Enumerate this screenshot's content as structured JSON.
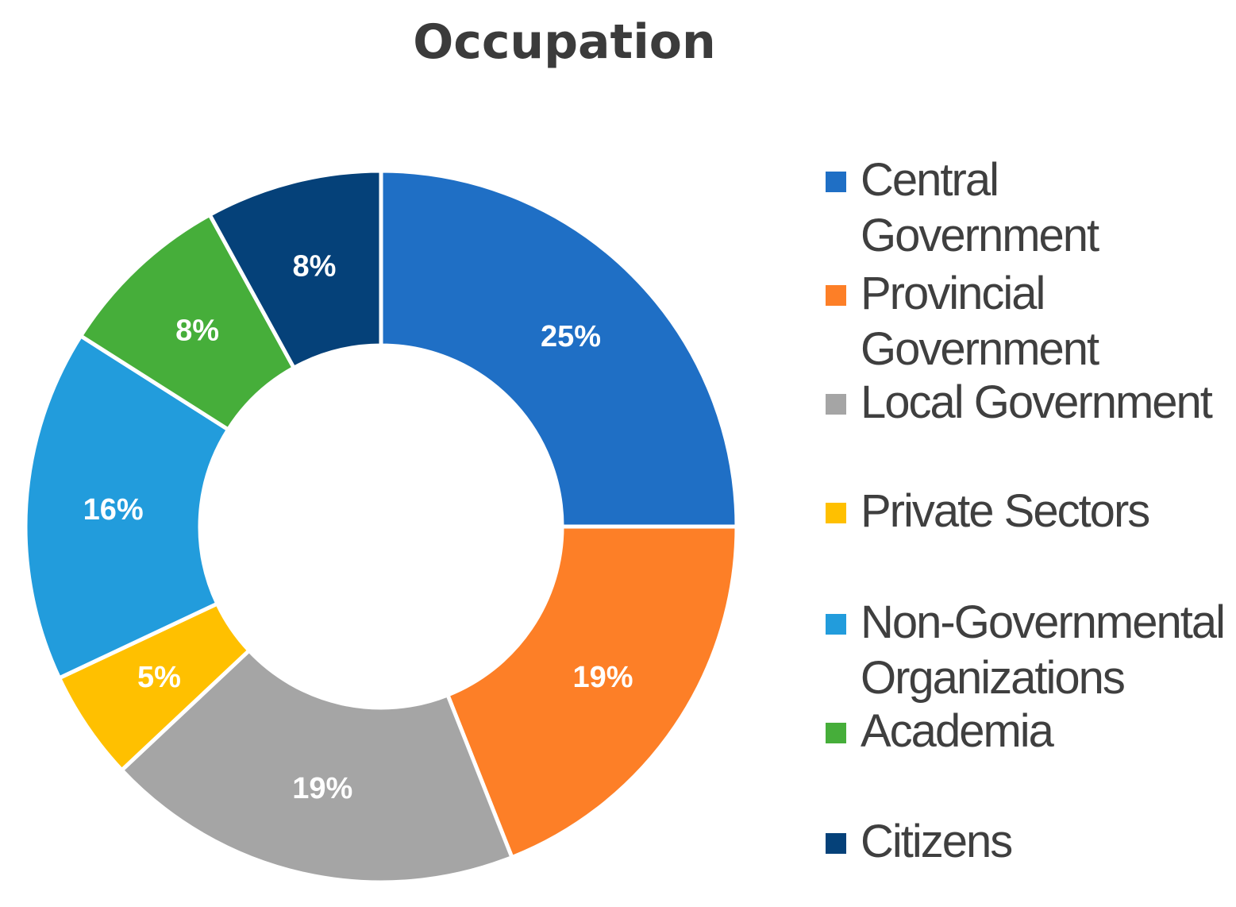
{
  "chart_data": {
    "type": "pie",
    "subtype": "donut",
    "title": "Occupation",
    "legend_position": "right",
    "categories": [
      "Central Government",
      "Provincial Government",
      "Local Government",
      "Private Sectors",
      "Non-Governmental Organizations",
      "Academia",
      "Citizens"
    ],
    "values": [
      25,
      19,
      19,
      5,
      16,
      8,
      8
    ],
    "labels": [
      "25%",
      "19%",
      "19%",
      "5%",
      "16%",
      "8%",
      "8%"
    ],
    "colors": [
      "#1f6fc5",
      "#fd7f27",
      "#a5a5a5",
      "#ffc000",
      "#229cdc",
      "#46ae3a",
      "#054179"
    ]
  }
}
